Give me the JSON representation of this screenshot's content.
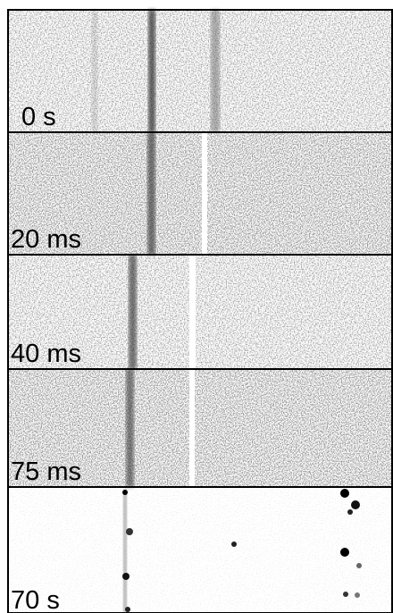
{
  "panels": [
    {
      "label": "0 s"
    },
    {
      "label": "20 ms"
    },
    {
      "label": "40 ms"
    },
    {
      "label": "75 ms"
    },
    {
      "label": "70 s"
    }
  ]
}
